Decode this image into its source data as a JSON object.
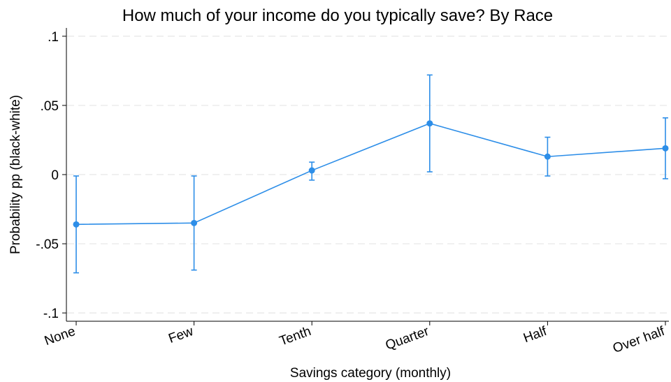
{
  "chart_data": {
    "type": "line",
    "title": "How much of your income do you typically save? By Race",
    "xlabel": "Savings category (monthly)",
    "ylabel": "Probability pp (black-white)",
    "categories": [
      "None",
      "Few",
      "Tenth",
      "Quarter",
      "Half",
      "Over half"
    ],
    "series": [
      {
        "values": [
          -0.036,
          -0.035,
          0.003,
          0.037,
          0.013,
          0.019
        ],
        "ci_lower": [
          -0.071,
          -0.069,
          -0.004,
          0.002,
          -0.001,
          -0.003
        ],
        "ci_upper": [
          -0.001,
          -0.001,
          0.009,
          0.072,
          0.027,
          0.041
        ],
        "color": "#2d8ee8"
      }
    ],
    "yticks": [
      0.1,
      0.05,
      0,
      -0.05,
      -0.1
    ],
    "ytick_labels": [
      ".1",
      ".05",
      "0",
      "-.05",
      "-.1"
    ],
    "ylim": [
      -0.106,
      0.106
    ],
    "grid": true,
    "legend": "none"
  }
}
